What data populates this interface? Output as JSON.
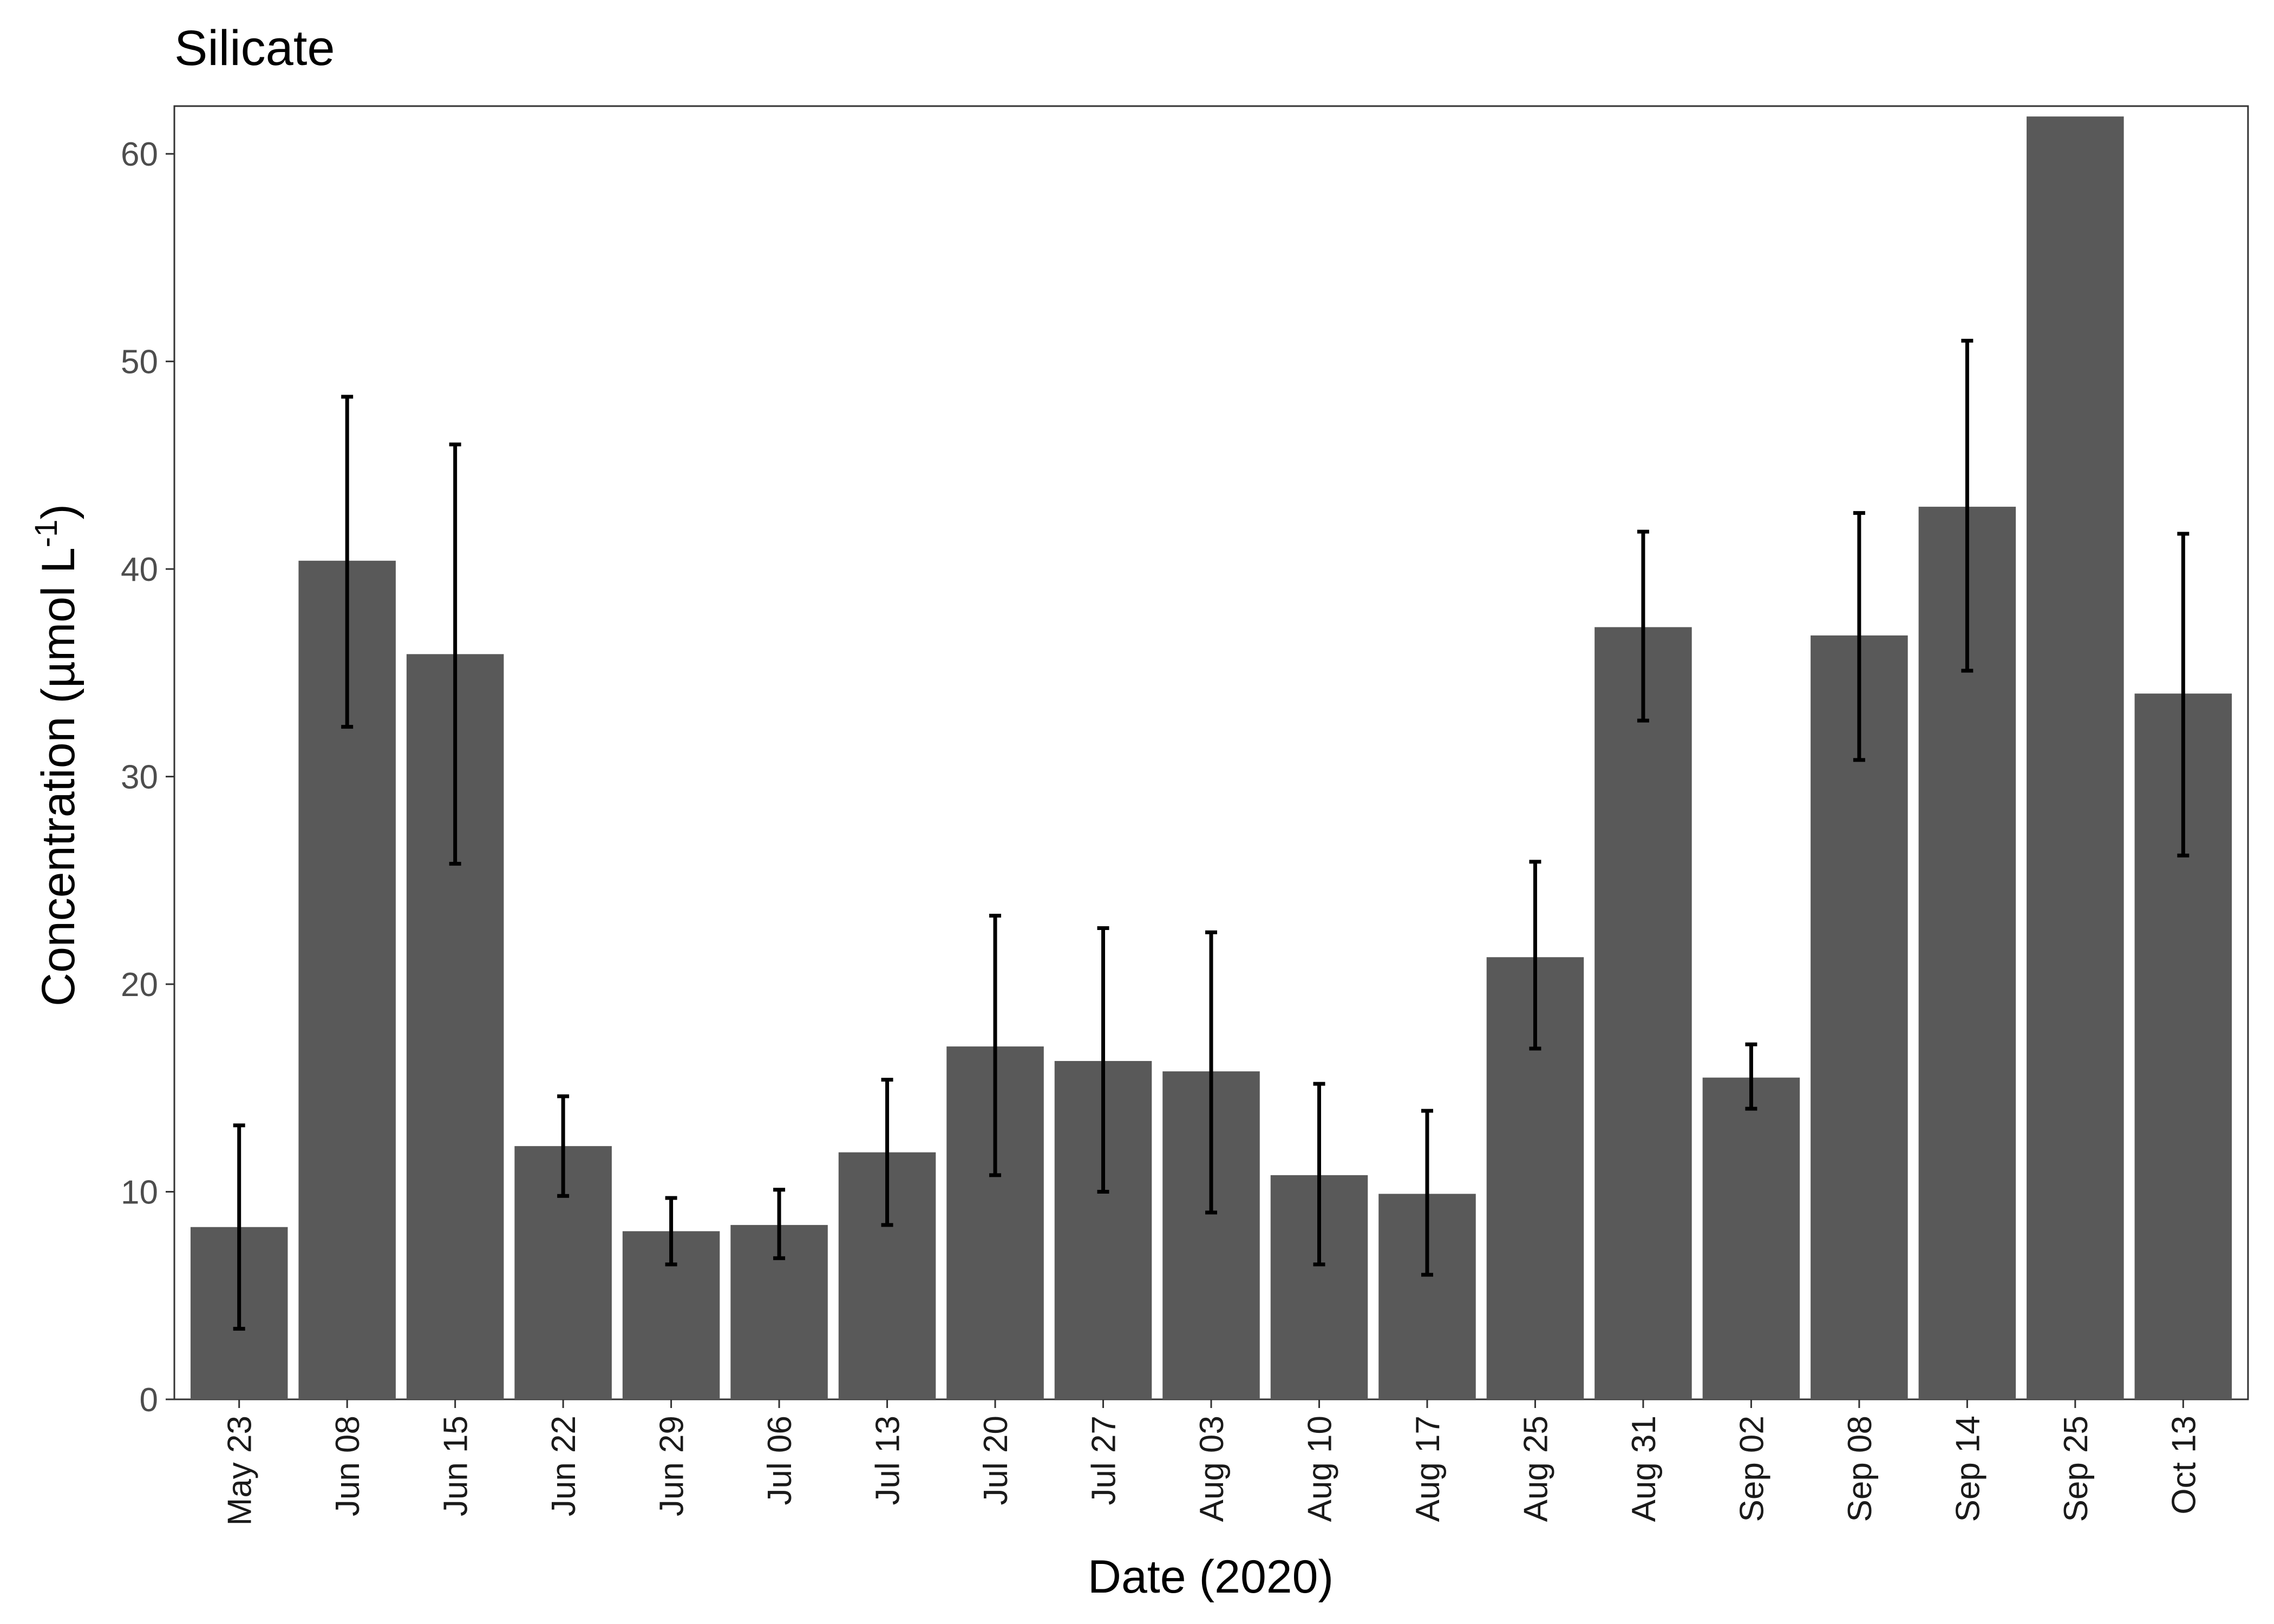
{
  "chart_data": {
    "type": "bar",
    "title": "Silicate",
    "xlabel": "Date (2020)",
    "ylabel": {
      "main": "Concentration (µmol L",
      "superscript": "-1",
      "close": ")"
    },
    "ylim": [
      0,
      62.3
    ],
    "yticks": [
      0,
      10,
      20,
      30,
      40,
      50,
      60
    ],
    "grid": false,
    "legend": "none",
    "categories": [
      "May 23",
      "Jun 08",
      "Jun 15",
      "Jun 22",
      "Jun 29",
      "Jul 06",
      "Jul 13",
      "Jul 20",
      "Jul 27",
      "Aug 03",
      "Aug 10",
      "Aug 17",
      "Aug 25",
      "Aug 31",
      "Sep 02",
      "Sep 08",
      "Sep 14",
      "Sep 25",
      "Oct 13"
    ],
    "values": [
      8.3,
      40.4,
      35.9,
      12.2,
      8.1,
      8.4,
      11.9,
      17.0,
      16.3,
      15.8,
      10.8,
      9.9,
      21.3,
      37.2,
      15.5,
      36.8,
      43.0,
      61.8,
      34.0
    ],
    "error_low": [
      3.4,
      32.4,
      25.8,
      9.8,
      6.5,
      6.8,
      8.4,
      10.8,
      10.0,
      9.0,
      6.5,
      6.0,
      16.9,
      32.7,
      14.0,
      30.8,
      35.1,
      null,
      26.2
    ],
    "error_high": [
      13.2,
      48.3,
      46.0,
      14.6,
      9.7,
      10.1,
      15.4,
      23.3,
      22.7,
      22.5,
      15.2,
      13.9,
      25.9,
      41.8,
      17.1,
      42.7,
      51.0,
      null,
      41.7
    ],
    "colors": {
      "bar": "#595959",
      "error_bar": "#000000",
      "panel_border": "#333333",
      "tick_text": "#4d4d4d",
      "background": "#ffffff"
    }
  }
}
